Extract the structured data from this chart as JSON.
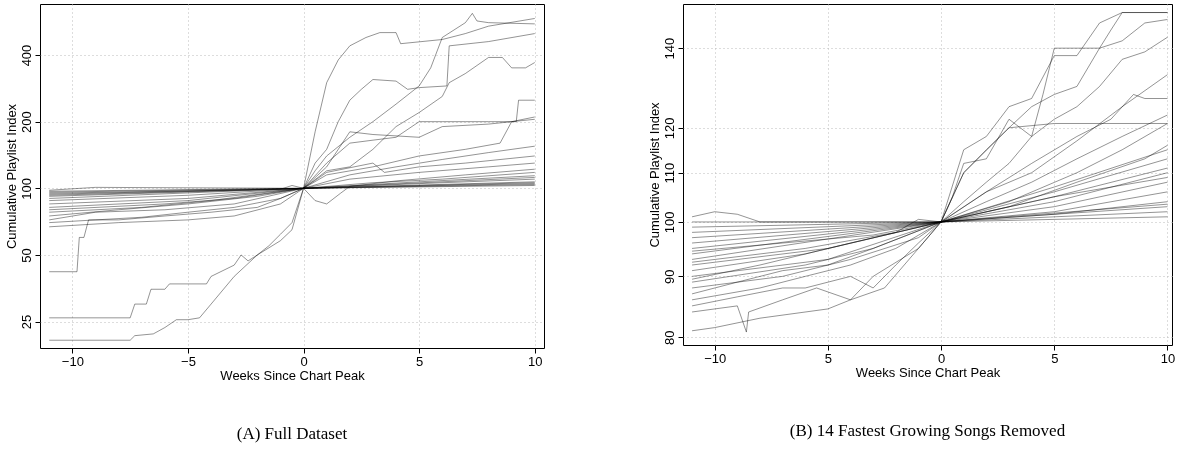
{
  "chart_data": [
    {
      "type": "line",
      "title": "(A) Full Dataset",
      "xlabel": "Weeks Since Chart Peak",
      "ylabel": "Cumulative Playlist Index",
      "log": "y",
      "grid": true,
      "xlim": [
        -11.4,
        10.4
      ],
      "ylim": [
        19,
        680
      ],
      "xticks": [
        -10,
        -5,
        0,
        5,
        10
      ],
      "yticks": [
        25,
        50,
        100,
        200,
        400
      ],
      "series": [
        {
          "color": "#000000",
          "x": [
            -11,
            -7.5,
            -7.3,
            -6.5,
            -6,
            -5.5,
            -5,
            -4.5,
            -4,
            -3,
            -2,
            -1,
            -0.5,
            0,
            0.5,
            1,
            1.5,
            2,
            2.7,
            3.3,
            4,
            4.2,
            6,
            7,
            8,
            10
          ],
          "values": [
            20.6,
            20.6,
            21.6,
            22,
            23.5,
            25.5,
            25.5,
            26,
            30,
            40,
            50,
            58,
            65,
            100,
            180,
            300,
            380,
            440,
            480,
            505,
            505,
            450,
            470,
            500,
            540,
            585
          ]
        },
        {
          "color": "#000000",
          "x": [
            -11,
            -7.5,
            -7.3,
            -6.8,
            -6.6,
            -6,
            -5.8,
            -4.2,
            -4,
            -3,
            -2.7,
            -2.4,
            -2,
            -1.5,
            -1,
            -0.5,
            0,
            0.5,
            1,
            2,
            3,
            4,
            5,
            5.5,
            6,
            7,
            7.3,
            7.5,
            8,
            10
          ],
          "values": [
            26,
            26,
            30,
            30,
            35,
            35,
            37,
            37,
            40,
            45,
            50,
            47,
            50,
            55,
            62,
            70,
            100,
            120,
            140,
            170,
            200,
            240,
            290,
            350,
            480,
            560,
            617,
            570,
            560,
            553
          ]
        },
        {
          "color": "#000000",
          "x": [
            -11,
            -9.8,
            -9.7,
            -9.5,
            -9.3,
            -8,
            -6,
            -4,
            -2,
            -1,
            0,
            1,
            2,
            3,
            5,
            6,
            8,
            9,
            10
          ],
          "values": [
            42,
            42,
            60,
            60,
            72,
            72,
            75,
            78,
            82,
            90,
            100,
            125,
            180,
            175,
            170,
            190,
            195,
            200,
            205
          ]
        },
        {
          "color": "#000000",
          "x": [
            -11,
            -8,
            -5,
            -3,
            -1,
            0,
            0.5,
            1,
            1.5,
            2,
            2.5,
            3,
            4,
            4.5,
            5,
            6.2,
            6.3,
            8,
            10
          ],
          "values": [
            67,
            70,
            72,
            75,
            85,
            100,
            130,
            150,
            200,
            250,
            280,
            310,
            305,
            280,
            285,
            290,
            440,
            460,
            500
          ]
        },
        {
          "color": "#000000",
          "x": [
            -11,
            -9,
            -7,
            -5,
            -3,
            -1,
            0,
            1,
            2,
            3,
            4,
            5,
            6,
            6.3,
            7,
            8,
            8.6,
            9,
            9.6,
            10
          ],
          "values": [
            70,
            72,
            74,
            78,
            82,
            90,
            100,
            120,
            125,
            150,
            190,
            220,
            260,
            300,
            330,
            390,
            390,
            350,
            350,
            370
          ]
        },
        {
          "color": "#000000",
          "x": [
            -11,
            -9,
            -6,
            -3,
            0,
            1,
            2,
            3,
            4,
            5,
            6,
            7,
            8,
            9.2,
            9.3,
            10
          ],
          "values": [
            72,
            78,
            80,
            85,
            100,
            130,
            160,
            165,
            170,
            200,
            200,
            200,
            200,
            200,
            250,
            250
          ]
        },
        {
          "color": "#000000",
          "x": [
            -11,
            -8,
            -5,
            -2,
            0,
            1,
            3,
            5,
            7,
            8.5,
            9,
            10
          ],
          "values": [
            75,
            80,
            85,
            92,
            100,
            115,
            125,
            140,
            150,
            160,
            200,
            210
          ]
        },
        {
          "color": "#000000",
          "x": [
            -11,
            -7,
            -4,
            0,
            2,
            4,
            6,
            8,
            10
          ],
          "values": [
            78,
            82,
            88,
            100,
            115,
            125,
            135,
            145,
            155
          ]
        },
        {
          "color": "#000000",
          "x": [
            -11,
            -6,
            -3,
            0,
            1,
            3,
            3.5,
            5,
            7,
            10
          ],
          "values": [
            80,
            85,
            90,
            100,
            118,
            130,
            118,
            125,
            130,
            140
          ]
        },
        {
          "color": "#000000",
          "x": [
            -11,
            -5,
            0,
            2,
            5,
            8,
            10
          ],
          "values": [
            82,
            88,
            100,
            110,
            118,
            125,
            130
          ]
        },
        {
          "color": "#000000",
          "x": [
            -11,
            -5,
            0,
            0.5,
            1,
            1.6,
            2,
            4,
            7,
            10
          ],
          "values": [
            85,
            90,
            100,
            88,
            85,
            95,
            102,
            108,
            115,
            122
          ]
        },
        {
          "color": "#000000",
          "x": [
            -11,
            -5,
            0,
            3,
            6,
            10
          ],
          "values": [
            88,
            93,
            100,
            106,
            110,
            118
          ]
        },
        {
          "color": "#000000",
          "x": [
            -11,
            0,
            5,
            10
          ],
          "values": [
            90,
            100,
            107,
            114
          ]
        },
        {
          "color": "#000000",
          "x": [
            -11,
            0,
            5,
            10
          ],
          "values": [
            92,
            100,
            105,
            110
          ]
        },
        {
          "color": "#000000",
          "x": [
            -11,
            0,
            10
          ],
          "values": [
            94,
            100,
            107
          ]
        },
        {
          "color": "#000000",
          "x": [
            -11,
            0,
            10
          ],
          "values": [
            96,
            100,
            105
          ]
        },
        {
          "color": "#000000",
          "x": [
            -11,
            0,
            10
          ],
          "values": [
            97,
            100,
            104
          ]
        },
        {
          "color": "#000000",
          "x": [
            -11,
            -9,
            0,
            10
          ],
          "values": [
            98,
            101,
            100,
            103
          ]
        },
        {
          "color": "#000000",
          "x": [
            -11,
            -1,
            -0.5,
            0,
            10
          ],
          "values": [
            95,
            99,
            103,
            100,
            106
          ]
        },
        {
          "color": "#000000",
          "x": [
            -11,
            0,
            10
          ],
          "values": [
            93,
            100,
            112
          ]
        }
      ]
    },
    {
      "type": "line",
      "title": "(B) 14 Fastest Growing Songs Removed",
      "xlabel": "Weeks Since Chart Peak",
      "ylabel": "Cumulative Playlist Index",
      "log": "y",
      "grid": true,
      "xlim": [
        -11.4,
        10.2
      ],
      "ylim": [
        78.8,
        152.5
      ],
      "xticks": [
        -10,
        {
          "value": -5,
          "label": "5"
        },
        0,
        5,
        10
      ],
      "yticks": [
        80,
        90,
        100,
        110,
        120,
        140
      ],
      "series": [
        {
          "color": "#000000",
          "x": [
            -11,
            -10,
            -8,
            -5,
            -4,
            -2.5,
            -1,
            0,
            1,
            2,
            3,
            4,
            5,
            6,
            7,
            8,
            10
          ],
          "values": [
            81,
            81.5,
            83,
            84.5,
            86,
            88,
            95,
            100,
            115,
            118,
            125,
            127,
            138,
            138,
            147,
            150,
            150
          ]
        },
        {
          "color": "#000000",
          "x": [
            -11,
            -9,
            -8.6,
            -8.5,
            -7,
            -5.5,
            -4,
            -3,
            -1,
            0,
            0.5,
            1,
            2,
            3,
            4,
            4.5,
            5,
            7,
            7.5,
            8,
            10
          ],
          "values": [
            84,
            85,
            80.8,
            84,
            86,
            88,
            86,
            90,
            95,
            100,
            105,
            112,
            113,
            122,
            118,
            128,
            140,
            140,
            145,
            150,
            150
          ]
        },
        {
          "color": "#000000",
          "x": [
            -11,
            -8,
            -6,
            -4,
            -2,
            0,
            1,
            2,
            3,
            4,
            5,
            6,
            7,
            8,
            9,
            10
          ],
          "values": [
            86,
            88,
            90,
            92,
            95,
            100,
            110,
            115,
            120,
            125,
            128,
            130,
            140,
            142,
            147,
            148
          ]
        },
        {
          "color": "#000000",
          "x": [
            -11,
            -9,
            -7,
            -5,
            -3,
            0,
            1,
            2,
            3,
            4,
            5,
            6,
            7,
            8,
            9,
            10
          ],
          "values": [
            87,
            89,
            91,
            92,
            95,
            100,
            104,
            108,
            112,
            118,
            122,
            125,
            130,
            137,
            139,
            143
          ]
        },
        {
          "color": "#000000",
          "x": [
            -11,
            -7,
            -4,
            -1,
            0,
            2,
            4,
            6,
            7.5,
            8.5,
            9,
            10
          ],
          "values": [
            88,
            90,
            93,
            97,
            100,
            106,
            112,
            118,
            122,
            128,
            127,
            127
          ]
        },
        {
          "color": "#000000",
          "x": [
            -11,
            -6,
            -3,
            0,
            2,
            4,
            6,
            8,
            10
          ],
          "values": [
            89,
            92,
            95,
            100,
            106,
            110,
            117,
            125,
            133
          ]
        },
        {
          "color": "#000000",
          "x": [
            -11,
            -5,
            0,
            2,
            4,
            6,
            8,
            10
          ],
          "values": [
            90,
            93,
            100,
            104,
            108,
            113,
            118,
            123
          ]
        },
        {
          "color": "#000000",
          "x": [
            -11,
            -6,
            0,
            3,
            6,
            8,
            10
          ],
          "values": [
            91,
            94,
            100,
            104,
            110,
            115,
            121
          ]
        },
        {
          "color": "#000000",
          "x": [
            -11,
            -5,
            0,
            3,
            6,
            9,
            10
          ],
          "values": [
            92,
            95,
            100,
            103,
            108,
            113,
            116
          ]
        },
        {
          "color": "#000000",
          "x": [
            -11,
            0,
            5,
            10
          ],
          "values": [
            93,
            100,
            106,
            113
          ]
        },
        {
          "color": "#000000",
          "x": [
            -11,
            0,
            5,
            10
          ],
          "values": [
            94,
            100,
            105,
            111
          ]
        },
        {
          "color": "#000000",
          "x": [
            -11,
            0,
            5,
            10
          ],
          "values": [
            95,
            100,
            104,
            110
          ]
        },
        {
          "color": "#000000",
          "x": [
            -11,
            0,
            5,
            10
          ],
          "values": [
            96,
            100,
            103,
            108
          ]
        },
        {
          "color": "#000000",
          "x": [
            -11,
            0,
            5,
            10
          ],
          "values": [
            97,
            100,
            102,
            106
          ]
        },
        {
          "color": "#000000",
          "x": [
            -11,
            0,
            5,
            10
          ],
          "values": [
            98,
            100,
            101.5,
            104
          ]
        },
        {
          "color": "#000000",
          "x": [
            -11,
            0,
            10
          ],
          "values": [
            99,
            100,
            103
          ]
        },
        {
          "color": "#000000",
          "x": [
            -11,
            -10,
            -9,
            -8,
            0,
            10
          ],
          "values": [
            101,
            102,
            101.5,
            100,
            100,
            102
          ]
        },
        {
          "color": "#000000",
          "x": [
            -11,
            0,
            10
          ],
          "values": [
            100,
            100,
            101
          ]
        },
        {
          "color": "#000000",
          "x": [
            -11,
            -7,
            -3,
            0,
            10
          ],
          "values": [
            94.5,
            96,
            97.5,
            100,
            103.5
          ]
        },
        {
          "color": "#000000",
          "x": [
            -11,
            -6,
            -2,
            -1,
            0,
            5,
            10
          ],
          "values": [
            92.5,
            95,
            98,
            100.5,
            100,
            105,
            109
          ]
        },
        {
          "color": "#000000",
          "x": [
            -11,
            -8,
            -4,
            0,
            5,
            10
          ],
          "values": [
            89.5,
            92,
            96,
            100,
            107,
            115
          ]
        },
        {
          "color": "#000000",
          "x": [
            -11,
            -9,
            -7,
            -6,
            -4,
            -3,
            -2,
            -1,
            0,
            1,
            3,
            5,
            7,
            10
          ],
          "values": [
            85,
            86.5,
            88,
            88,
            90,
            88,
            92,
            96,
            100,
            110,
            120,
            121,
            121,
            121
          ]
        }
      ]
    }
  ]
}
